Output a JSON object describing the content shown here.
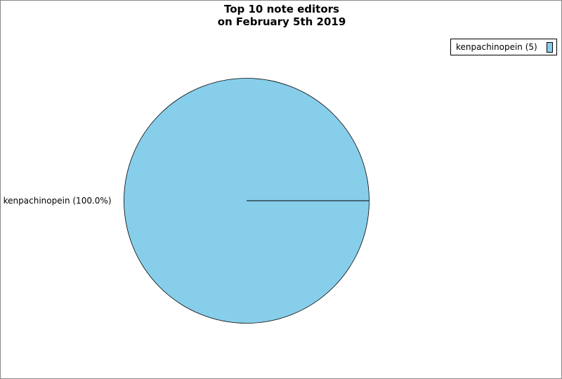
{
  "chart_data": {
    "type": "pie",
    "title": [
      "Top 10 note editors",
      "on February 5th 2019"
    ],
    "slices": [
      {
        "label": "kenpachinopein",
        "value": 5,
        "percent_label": "kenpachinopein (100.0%)",
        "legend_label": "kenpachinopein (5)",
        "color": "#87ceeb"
      }
    ],
    "legend_placement": "top-right"
  }
}
